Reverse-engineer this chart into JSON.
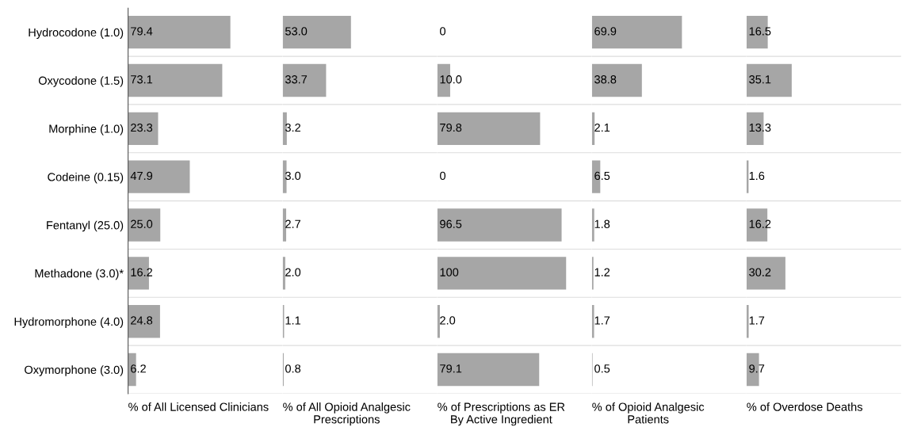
{
  "chart_data": [
    {
      "type": "bar",
      "orientation": "horizontal",
      "xlabel": "% of All Licensed Clinicians",
      "categories": [
        "Hydrocodone (1.0)",
        "Oxycodone (1.5)",
        "Morphine (1.0)",
        "Codeine (0.15)",
        "Fentanyl (25.0)",
        "Methadone (3.0)*",
        "Hydromorphone (4.0)",
        "Oxymorphone (3.0)"
      ],
      "values": [
        79.4,
        73.1,
        23.3,
        47.9,
        25.0,
        16.2,
        24.8,
        6.2
      ],
      "value_labels": [
        "79.4",
        "73.1",
        "23.3",
        "47.9",
        "25.0",
        "16.2",
        "24.8",
        "6.2"
      ],
      "color": "#a6a6a6",
      "xlim": [
        0,
        120
      ],
      "tick_labels": "y",
      "grid": "y"
    },
    {
      "type": "bar",
      "orientation": "horizontal",
      "xlabel": "% of All Opioid Analgesic\nPrescriptions",
      "categories": [
        null,
        null,
        null,
        null,
        null,
        null,
        null,
        null
      ],
      "values": [
        53.0,
        33.7,
        3.2,
        3.0,
        2.7,
        2.0,
        1.1,
        0.8
      ],
      "value_labels": [
        "53.0",
        "33.7",
        "3.2",
        "3.0",
        "2.7",
        "2.0",
        "1.1",
        "0.8"
      ],
      "color": "#a6a6a6",
      "xlim": [
        0,
        120
      ],
      "tick_labels": false,
      "grid": "y"
    },
    {
      "type": "bar",
      "orientation": "horizontal",
      "xlabel": "% of Prescriptions as ER\nBy Active Ingredient",
      "categories": [
        null,
        null,
        null,
        null,
        null,
        null,
        null,
        null
      ],
      "values": [
        0,
        10.0,
        79.8,
        0,
        96.5,
        100,
        2.0,
        79.1
      ],
      "value_labels": [
        "0",
        "10.0",
        "79.8",
        "0",
        "96.5",
        "100",
        "2.0",
        "79.1"
      ],
      "color": "#a6a6a6",
      "xlim": [
        0,
        120
      ],
      "tick_labels": false,
      "grid": "y"
    },
    {
      "type": "bar",
      "orientation": "horizontal",
      "xlabel": "% of Opioid Analgesic\nPatients",
      "categories": [
        null,
        null,
        null,
        null,
        null,
        null,
        null,
        null
      ],
      "values": [
        69.9,
        38.8,
        2.1,
        6.5,
        1.8,
        1.2,
        1.7,
        0.5
      ],
      "value_labels": [
        "69.9",
        "38.8",
        "2.1",
        "6.5",
        "1.8",
        "1.2",
        "1.7",
        "0.5"
      ],
      "color": "#a6a6a6",
      "xlim": [
        0,
        120
      ],
      "tick_labels": false,
      "grid": "y"
    },
    {
      "type": "bar",
      "orientation": "horizontal",
      "xlabel": "% of Overdose Deaths",
      "categories": [
        null,
        null,
        null,
        null,
        null,
        null,
        null,
        null
      ],
      "values": [
        16.5,
        35.1,
        13.3,
        1.6,
        16.2,
        30.2,
        1.7,
        9.7
      ],
      "value_labels": [
        "16.5",
        "35.1",
        "13.3",
        "1.6",
        "16.2",
        "30.2",
        "1.7",
        "9.7"
      ],
      "color": "#a6a6a6",
      "xlim": [
        0,
        120
      ],
      "tick_labels": false,
      "grid": "y"
    }
  ]
}
